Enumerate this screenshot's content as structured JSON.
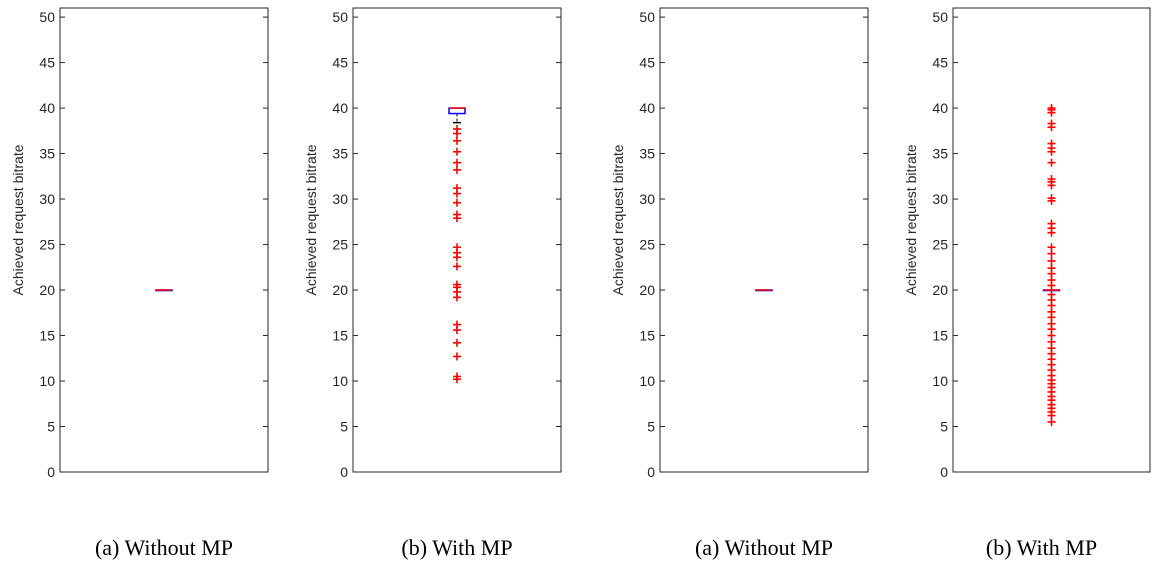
{
  "chart_data": [
    {
      "type": "box",
      "ylabel": "Achieved request bitrate",
      "ylim": [
        0,
        51
      ],
      "yticks": [
        "0",
        "5",
        "10",
        "15",
        "20",
        "25",
        "30",
        "35",
        "40",
        "45",
        "50"
      ],
      "caption": "(a) Without MP",
      "box": {
        "q1": 20,
        "median": 20,
        "q3": 20,
        "whisker_low": 20,
        "whisker_high": 20
      },
      "outliers": [],
      "grid": false
    },
    {
      "type": "box",
      "ylabel": "Achieved request bitrate",
      "ylim": [
        0,
        51
      ],
      "yticks": [
        "0",
        "5",
        "10",
        "15",
        "20",
        "25",
        "30",
        "35",
        "40",
        "45",
        "50"
      ],
      "caption": "(b) With MP",
      "box": {
        "q1": 39.4,
        "median": 40,
        "q3": 40,
        "whisker_low": 38.4,
        "whisker_high": 40
      },
      "outliers": [
        10.2,
        10.5,
        12.7,
        14.2,
        15.6,
        16.2,
        19.2,
        19.8,
        20.3,
        20.6,
        22.6,
        23.6,
        24.1,
        24.7,
        27.9,
        28.3,
        29.6,
        30.6,
        31.2,
        33.2,
        34.0,
        35.2,
        36.4,
        37.2,
        37.7
      ],
      "grid": false
    },
    {
      "type": "box",
      "ylabel": "Achieved request bitrate",
      "ylim": [
        0,
        51
      ],
      "yticks": [
        "0",
        "5",
        "10",
        "15",
        "20",
        "25",
        "30",
        "35",
        "40",
        "45",
        "50"
      ],
      "caption": "(a) Without MP",
      "box": {
        "q1": 20,
        "median": 20,
        "q3": 20,
        "whisker_low": 20,
        "whisker_high": 20
      },
      "outliers": [],
      "grid": false
    },
    {
      "type": "box",
      "ylabel": "Achieved request bitrate",
      "ylim": [
        0,
        51
      ],
      "yticks": [
        "0",
        "5",
        "10",
        "15",
        "20",
        "25",
        "30",
        "35",
        "40",
        "45",
        "50"
      ],
      "caption": "(b) With MP",
      "box": {
        "q1": 20,
        "median": 20,
        "q3": 20,
        "whisker_low": 20,
        "whisker_high": 20
      },
      "outliers": [
        5.5,
        6.2,
        6.6,
        7.0,
        7.4,
        7.9,
        8.3,
        8.8,
        9.3,
        9.7,
        10.1,
        10.6,
        11.2,
        11.8,
        12.4,
        13.0,
        13.6,
        14.3,
        15.0,
        15.7,
        16.3,
        17.0,
        17.6,
        18.3,
        18.9,
        19.5,
        20.5,
        21.1,
        21.8,
        22.4,
        23.2,
        24.0,
        24.7,
        26.3,
        26.8,
        27.3,
        29.8,
        30.1,
        31.5,
        31.9,
        32.2,
        34.0,
        35.2,
        35.6,
        36.1,
        37.9,
        38.3,
        39.5,
        39.8,
        40.0
      ],
      "grid": false
    }
  ],
  "colors": {
    "box": "#0000ff",
    "median": "#ff0000",
    "whisker": "#000000",
    "outlier": "#ff0000",
    "axis": "#262626"
  }
}
